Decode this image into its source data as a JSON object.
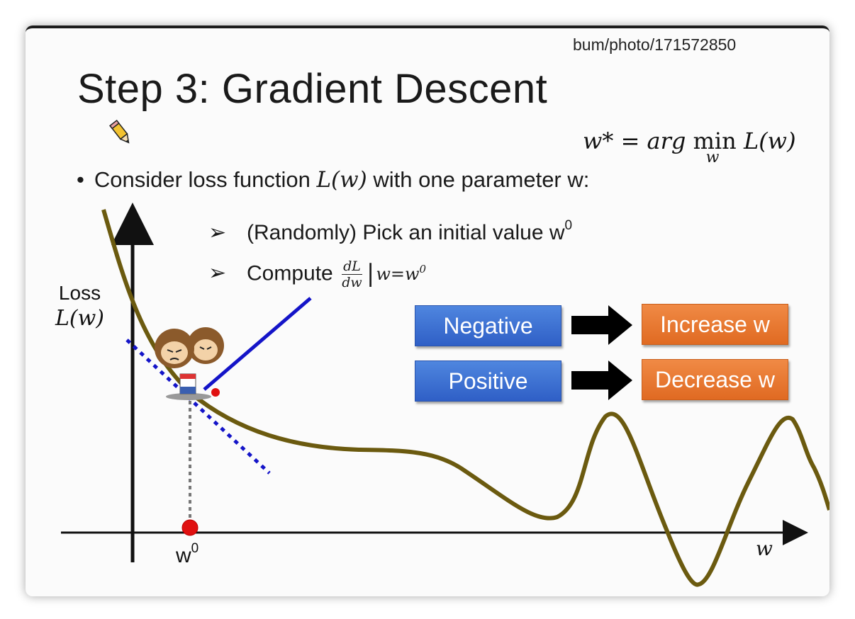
{
  "url_fragment": "bum/photo/171572850",
  "title": "Step 3: Gradient Descent",
  "formula": {
    "lhs": "w* = arg ",
    "min": "min",
    "min_sub": "w",
    "rhs": " L(w)"
  },
  "bullet": {
    "pre": "Consider loss function ",
    "math": "L(w)",
    "post": " with one parameter w:"
  },
  "steps": {
    "pick_text": "(Randomly) Pick an initial value w",
    "pick_sup": "0",
    "compute_text": "Compute ",
    "deriv_num": "dL",
    "deriv_den": "dw",
    "eval_text": "w=w",
    "eval_sup": "0"
  },
  "y_axis_label": {
    "line1": "Loss",
    "line2": "L(w)"
  },
  "x_axis_label": "w",
  "w0_label": "w",
  "w0_sup": "0",
  "rules": {
    "negative": "Negative",
    "positive": "Positive",
    "increase": "Increase w",
    "decrease": "Decrease w"
  },
  "colors": {
    "curve": "#6b5a0f",
    "tangent": "#1414c8",
    "blue_box": "#3a6dd1",
    "orange_box": "#e8772f",
    "marker": "#e01010"
  }
}
